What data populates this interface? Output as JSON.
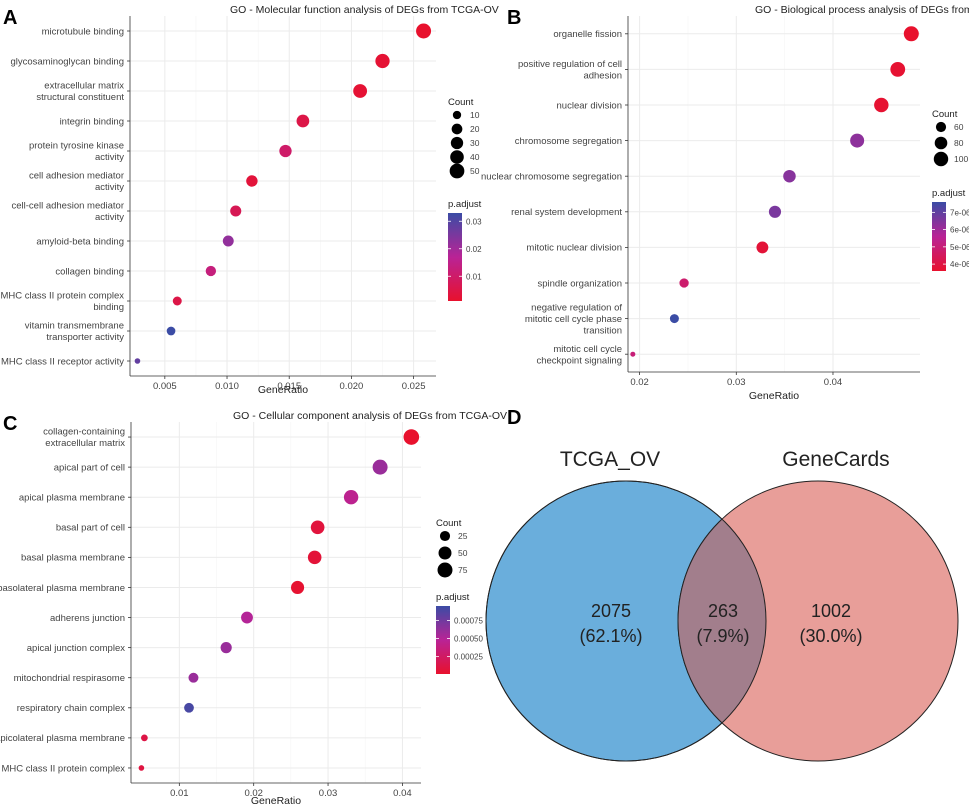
{
  "colors": {
    "high": "#e8112d",
    "low": "#3b4ca5",
    "grid": "#ebebeb",
    "venn_left": "#6aaedc",
    "venn_right": "#e89e99",
    "venn_overlap": "#a27e8c"
  },
  "chart_data": [
    {
      "type": "scatter",
      "panel": "A",
      "title": "GO - Molecular function analysis of DEGs from TCGA-OV",
      "xlabel": "GeneRatio",
      "ylabel": "",
      "xlim": [
        0.0022,
        0.0268
      ],
      "xticks": [
        "0.005",
        "0.010",
        "0.015",
        "0.020",
        "0.025"
      ],
      "xtick_values": [
        0.005,
        0.01,
        0.015,
        0.02,
        0.025
      ],
      "categories": [
        [
          "microtubule binding"
        ],
        [
          "glycosaminoglycan binding"
        ],
        [
          "extracellular matrix",
          "structural constituent"
        ],
        [
          "integrin binding"
        ],
        [
          "protein tyrosine kinase",
          "activity"
        ],
        [
          "cell adhesion mediator",
          "activity"
        ],
        [
          "cell-cell adhesion mediator",
          "activity"
        ],
        [
          "amyloid-beta binding"
        ],
        [
          "collagen binding"
        ],
        [
          "MHC class II protein complex",
          "binding"
        ],
        [
          "vitamin transmembrane",
          "transporter activity"
        ],
        [
          "MHC class II receptor activity"
        ]
      ],
      "x": [
        0.0258,
        0.0225,
        0.0207,
        0.0161,
        0.0147,
        0.012,
        0.0107,
        0.0101,
        0.0087,
        0.006,
        0.0055,
        0.0028
      ],
      "count": [
        53,
        46,
        42,
        33,
        30,
        24,
        22,
        21,
        18,
        12,
        11,
        6
      ],
      "p_adjust": [
        0.001,
        0.002,
        0.002,
        0.005,
        0.01,
        0.003,
        0.007,
        0.022,
        0.013,
        0.005,
        0.033,
        0.028
      ],
      "size_legend": {
        "title": "Count",
        "labels": [
          "10",
          "20",
          "30",
          "40",
          "50"
        ],
        "values": [
          10,
          20,
          30,
          40,
          50
        ]
      },
      "size_range": [
        6,
        53
      ],
      "color_legend": {
        "title": "p.adjust",
        "labels": [
          "0.03",
          "0.02",
          "0.01"
        ],
        "values": [
          0.03,
          0.02,
          0.01
        ]
      },
      "color_range": [
        0.001,
        0.033
      ]
    },
    {
      "type": "scatter",
      "panel": "B",
      "title": "GO - Biological process analysis of DEGs from TCGA-OV",
      "xlabel": "GeneRatio",
      "ylabel": "",
      "xlim": [
        0.0188,
        0.049
      ],
      "xticks": [
        "0.02",
        "0.03",
        "0.04"
      ],
      "xtick_values": [
        0.02,
        0.03,
        0.04
      ],
      "categories": [
        [
          "organelle fission"
        ],
        [
          "positive regulation of cell",
          "adhesion"
        ],
        [
          "nuclear division"
        ],
        [
          "chromosome segregation"
        ],
        [
          "nuclear chromosome segregation"
        ],
        [
          "renal system development"
        ],
        [
          "mitotic nuclear division"
        ],
        [
          "spindle organization"
        ],
        [
          "negative regulation of",
          "mitotic cell cycle phase",
          "transition"
        ],
        [
          "mitotic cell cycle",
          "checkpoint signaling"
        ]
      ],
      "x": [
        0.0481,
        0.0467,
        0.045,
        0.0425,
        0.0355,
        0.034,
        0.0327,
        0.0246,
        0.0236,
        0.0193
      ],
      "count": [
        107,
        104,
        100,
        95,
        79,
        76,
        73,
        55,
        53,
        43
      ],
      "p_adjust": [
        3.6e-06,
        3.7e-06,
        3.7e-06,
        6.3e-06,
        6.4e-06,
        6.6e-06,
        3.8e-06,
        4.8e-06,
        7.6e-06,
        5e-06
      ],
      "size_legend": {
        "title": "Count",
        "labels": [
          "60",
          "80",
          "100"
        ],
        "values": [
          60,
          80,
          100
        ]
      },
      "size_range": [
        43,
        107
      ],
      "color_legend": {
        "title": "p.adjust",
        "labels": [
          "7e-06",
          "6e-06",
          "5e-06",
          "4e-06"
        ],
        "values": [
          7e-06,
          6e-06,
          5e-06,
          4e-06
        ]
      },
      "color_range": [
        3.6e-06,
        7.6e-06
      ]
    },
    {
      "type": "scatter",
      "panel": "C",
      "title": "GO - Cellular component analysis of DEGs from TCGA-OV",
      "xlabel": "GeneRatio",
      "ylabel": "",
      "xlim": [
        0.0035,
        0.0425
      ],
      "xticks": [
        "0.01",
        "0.02",
        "0.03",
        "0.04"
      ],
      "xtick_values": [
        0.01,
        0.02,
        0.03,
        0.04
      ],
      "categories": [
        [
          "collagen-containing",
          "extracellular matrix"
        ],
        [
          "apical part of cell"
        ],
        [
          "apical plasma membrane"
        ],
        [
          "basal part of cell"
        ],
        [
          "basal plasma membrane"
        ],
        [
          "basolateral plasma membrane"
        ],
        [
          "adherens junction"
        ],
        [
          "apical junction complex"
        ],
        [
          "mitochondrial respirasome"
        ],
        [
          "respiratory chain complex"
        ],
        [
          "apicolateral plasma membrane"
        ],
        [
          "MHC class II protein complex"
        ]
      ],
      "x": [
        0.0412,
        0.037,
        0.0331,
        0.0286,
        0.0282,
        0.0259,
        0.0191,
        0.0163,
        0.0119,
        0.0113,
        0.0053,
        0.0049
      ],
      "count": [
        84,
        75,
        67,
        58,
        57,
        52,
        39,
        33,
        24,
        23,
        11,
        10
      ],
      "p_adjust": [
        1e-05,
        0.0006,
        0.00045,
        8e-05,
        6e-05,
        3e-05,
        0.0005,
        0.0006,
        0.0006,
        0.0009,
        0.00012,
        0.0001
      ],
      "size_legend": {
        "title": "Count",
        "labels": [
          "25",
          "50",
          "75"
        ],
        "values": [
          25,
          50,
          75
        ]
      },
      "size_range": [
        10,
        84
      ],
      "color_legend": {
        "title": "p.adjust",
        "labels": [
          "0.00075",
          "0.00050",
          "0.00025"
        ],
        "values": [
          0.00075,
          0.0005,
          0.00025
        ]
      },
      "color_range": [
        1e-05,
        0.00095
      ]
    },
    {
      "type": "venn",
      "panel": "D",
      "title": "",
      "sets": [
        "TCGA_OV",
        "GeneCards"
      ],
      "values": {
        "left_only": 2075,
        "overlap": 263,
        "right_only": 1002
      },
      "labels": {
        "left_only": [
          "2075",
          "(62.1%)"
        ],
        "overlap": [
          "263",
          "(7.9%)"
        ],
        "right_only": [
          "1002",
          "(30.0%)"
        ]
      }
    }
  ]
}
